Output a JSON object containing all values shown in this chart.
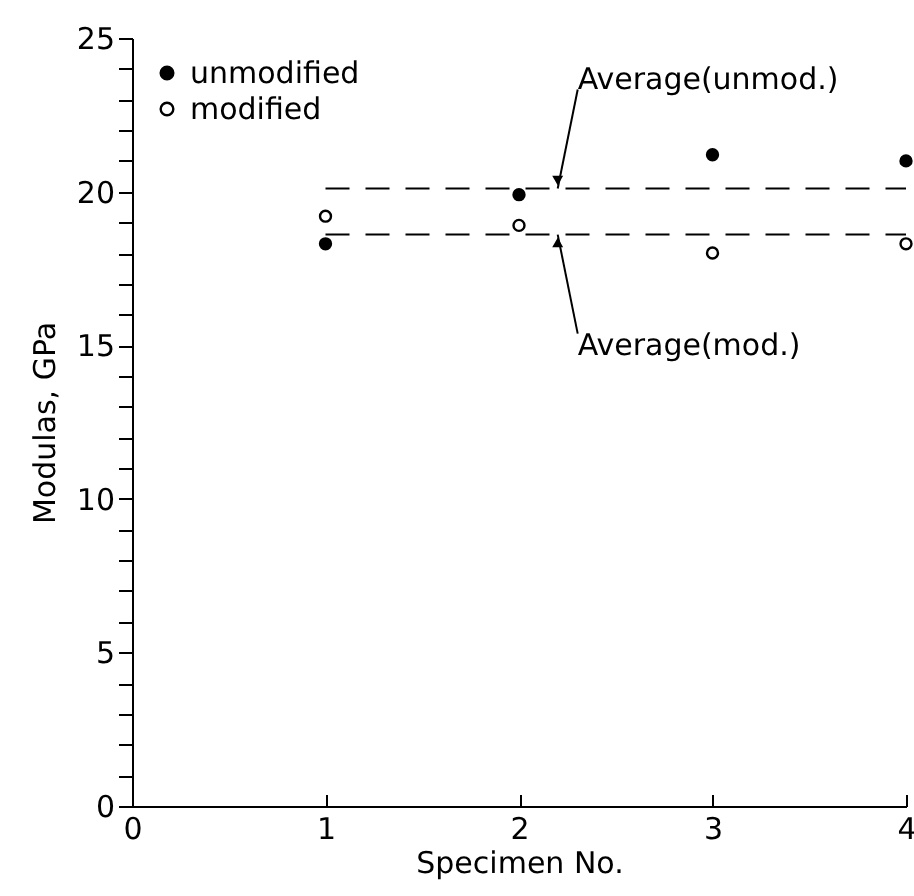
{
  "chart_data": {
    "type": "scatter",
    "xlabel": "Specimen  No.",
    "ylabel": "Modulas,  GPa",
    "x": [
      1,
      2,
      3,
      4
    ],
    "series": [
      {
        "name": "unmodified",
        "color": "#000000",
        "values": [
          18.3,
          19.9,
          21.2,
          21.0
        ]
      },
      {
        "name": "modified",
        "color": "#000000",
        "values": [
          19.2,
          18.9,
          18.0,
          18.3
        ]
      }
    ],
    "xlim": [
      0,
      4
    ],
    "xticks": [
      0,
      1,
      2,
      3,
      4
    ],
    "ylim": [
      0,
      25
    ],
    "yticks": [
      0,
      {
        "value": 1,
        "label": null
      },
      {
        "value": 2,
        "label": null
      },
      {
        "value": 3,
        "label": null
      },
      {
        "value": 4,
        "label": null
      },
      5,
      {
        "value": 6,
        "label": null
      },
      {
        "value": 7,
        "label": null
      },
      {
        "value": 8,
        "label": null
      },
      {
        "value": 9,
        "label": null
      },
      10,
      {
        "value": 11,
        "label": null
      },
      {
        "value": 12,
        "label": null
      },
      {
        "value": 13,
        "label": null
      },
      {
        "value": 14,
        "label": null
      },
      15,
      {
        "value": 16,
        "label": null
      },
      {
        "value": 17,
        "label": null
      },
      {
        "value": 18,
        "label": null
      },
      {
        "value": 19,
        "label": null
      },
      20,
      {
        "value": 21,
        "label": null
      },
      {
        "value": 22,
        "label": null
      },
      {
        "value": 23,
        "label": null
      },
      {
        "value": 24,
        "label": null
      },
      25
    ],
    "ref_lines": [
      {
        "axis": "y",
        "value": 20.1,
        "label": "Average(unmod.)",
        "line_style": "dashed"
      },
      {
        "axis": "y",
        "value": 18.6,
        "label": "Average(mod.)",
        "line_style": "dashed"
      }
    ],
    "marker": "circle",
    "legend": "top left",
    "grid": false
  }
}
